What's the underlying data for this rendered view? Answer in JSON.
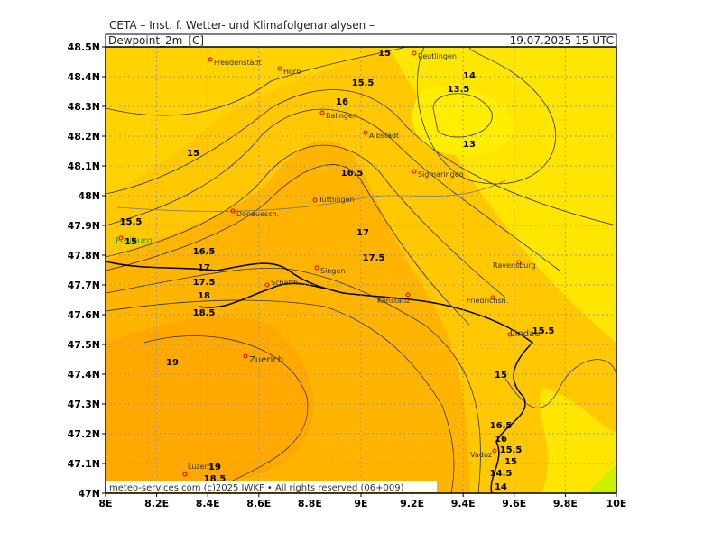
{
  "header": {
    "title": "CETA – Inst. f. Wetter- und Klimafolgenanalysen –",
    "field": "Dewpoint_2m_[C]",
    "valid_time": "19.07.2025 15 UTC"
  },
  "axes": {
    "lat_labels": [
      "48.5N",
      "48.4N",
      "48.3N",
      "48.2N",
      "48.1N",
      "48N",
      "47.9N",
      "47.8N",
      "47.7N",
      "47.6N",
      "47.5N",
      "47.4N",
      "47.3N",
      "47.2N",
      "47.1N",
      "47N"
    ],
    "lon_labels": [
      "8E",
      "8.2E",
      "8.4E",
      "8.6E",
      "8.8E",
      "9E",
      "9.2E",
      "9.4E",
      "9.6E",
      "9.8E",
      "10E"
    ]
  },
  "cities": [
    "Freudenstadt",
    "Horb",
    "Reutlingen",
    "Balingen",
    "Albstadt",
    "Sigmaringen",
    "Tuttlingen",
    "Donauesch.",
    "Freiburg",
    "Singen",
    "Schaffh.",
    "Konstanz",
    "Ravensburg",
    "Friedrichsh.",
    "Lindau",
    "Zuerich",
    "Vaduz",
    "Luzern"
  ],
  "contour_labels": [
    "15",
    "15.5",
    "14",
    "13.5",
    "16",
    "13",
    "15",
    "16.5",
    "15.5",
    "15",
    "17",
    "16.5",
    "17",
    "17.5",
    "17.5",
    "18",
    "18.5",
    "15.5",
    "19",
    "15",
    "16.5",
    "16",
    "15.5",
    "15",
    "14.5",
    "14",
    "19",
    "18.5"
  ],
  "footer": "meteo-services.com (c)2025 IWKF • All rights reserved (06+009)"
}
